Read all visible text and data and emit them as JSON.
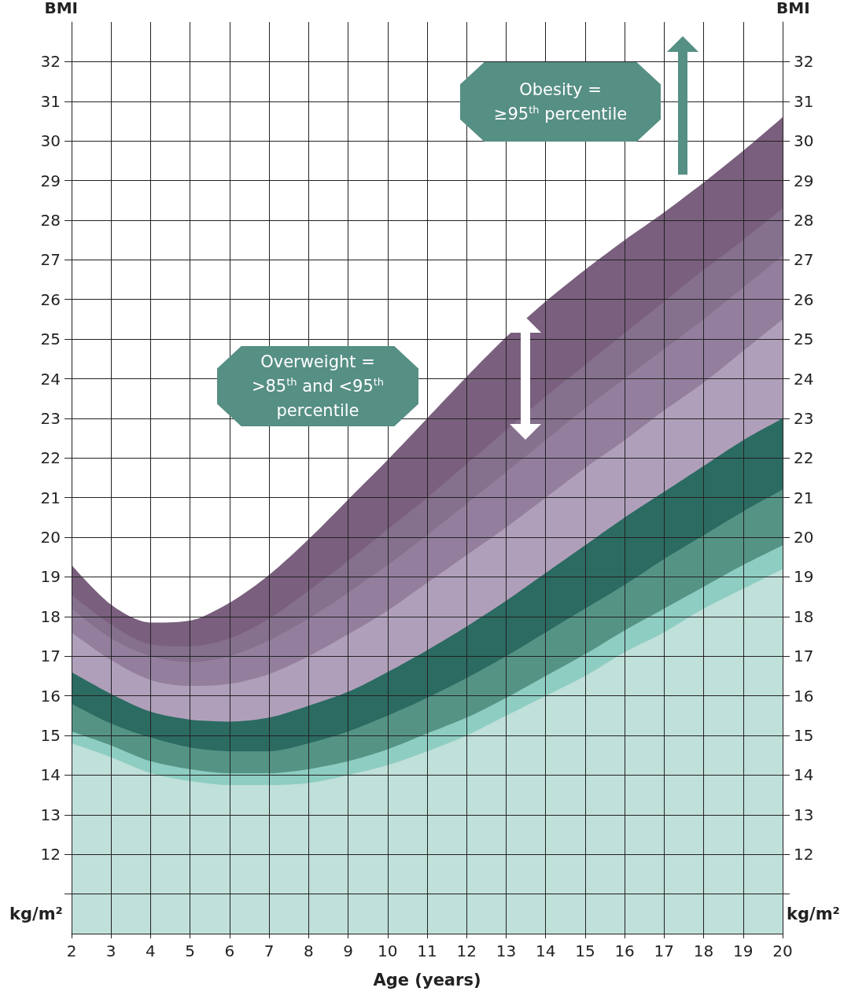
{
  "chart_data": {
    "type": "area",
    "xlabel": "Age (years)",
    "ylabel": "BMI",
    "y2label": "BMI",
    "x": [
      2,
      3,
      4,
      5,
      6,
      7,
      8,
      9,
      10,
      11,
      12,
      13,
      14,
      15,
      16,
      17,
      18,
      19,
      20
    ],
    "series": [
      {
        "color": "#c0e0da",
        "values": [
          14.8,
          14.45,
          14.05,
          13.85,
          13.75,
          13.75,
          13.8,
          14.0,
          14.25,
          14.6,
          15.0,
          15.5,
          16.0,
          16.5,
          17.1,
          17.6,
          18.2,
          18.7,
          19.2
        ]
      },
      {
        "color": "#8ecdc2",
        "values": [
          15.1,
          14.75,
          14.35,
          14.15,
          14.05,
          14.05,
          14.15,
          14.35,
          14.65,
          15.05,
          15.45,
          15.95,
          16.5,
          17.05,
          17.65,
          18.2,
          18.75,
          19.3,
          19.8
        ]
      },
      {
        "color": "#559485",
        "values": [
          15.8,
          15.3,
          14.95,
          14.7,
          14.6,
          14.6,
          14.8,
          15.1,
          15.5,
          15.95,
          16.45,
          17.0,
          17.6,
          18.2,
          18.8,
          19.45,
          20.05,
          20.65,
          21.2
        ]
      },
      {
        "color": "#2b6b62",
        "values": [
          16.6,
          16.05,
          15.6,
          15.4,
          15.35,
          15.45,
          15.75,
          16.1,
          16.6,
          17.15,
          17.75,
          18.4,
          19.1,
          19.8,
          20.5,
          21.15,
          21.8,
          22.45,
          23.0
        ]
      },
      {
        "color": "#b09fba",
        "values": [
          17.6,
          16.9,
          16.4,
          16.25,
          16.3,
          16.55,
          17.0,
          17.55,
          18.15,
          18.85,
          19.55,
          20.25,
          21.0,
          21.75,
          22.45,
          23.2,
          23.9,
          24.7,
          25.5
        ]
      },
      {
        "color": "#937f9d",
        "values": [
          18.2,
          17.45,
          17.0,
          16.85,
          17.0,
          17.4,
          17.95,
          18.6,
          19.3,
          20.05,
          20.85,
          21.65,
          22.45,
          23.25,
          24.0,
          24.75,
          25.5,
          26.3,
          27.1
        ]
      },
      {
        "color": "#85708e",
        "values": [
          18.55,
          17.8,
          17.3,
          17.25,
          17.45,
          17.95,
          18.65,
          19.4,
          20.2,
          21.0,
          21.85,
          22.7,
          23.55,
          24.35,
          25.15,
          25.95,
          26.75,
          27.5,
          28.3
        ]
      },
      {
        "color": "#7a5f7e",
        "values": [
          19.3,
          18.3,
          17.85,
          17.9,
          18.35,
          19.05,
          19.95,
          20.95,
          21.95,
          23.0,
          24.05,
          25.05,
          25.95,
          26.75,
          27.5,
          28.2,
          28.95,
          29.75,
          30.6
        ]
      }
    ],
    "xlim": [
      2,
      20
    ],
    "xticks": [
      2,
      3,
      4,
      5,
      6,
      7,
      8,
      9,
      10,
      11,
      12,
      13,
      14,
      15,
      16,
      17,
      18,
      19,
      20
    ],
    "ylim": [
      10,
      33
    ],
    "yticks": [
      {
        "value": 11,
        "label": null
      },
      12,
      13,
      14,
      15,
      16,
      17,
      18,
      19,
      20,
      21,
      22,
      23,
      24,
      25,
      26,
      27,
      28,
      29,
      30,
      31,
      32
    ],
    "y2lim": [
      10,
      33
    ],
    "y2ticks": [
      {
        "value": 11,
        "label": null
      },
      12,
      13,
      14,
      15,
      16,
      17,
      18,
      19,
      20,
      21,
      22,
      23,
      24,
      25,
      26,
      27,
      28,
      29,
      30,
      31,
      32
    ],
    "grid": true,
    "annotations": [
      "Obesity =\n≥95$^{th}$ percentile",
      "Overweight =\n>85$^{th}$ and <95$^{th}$\npercentile",
      "kg/m²",
      "kg/m²"
    ]
  }
}
